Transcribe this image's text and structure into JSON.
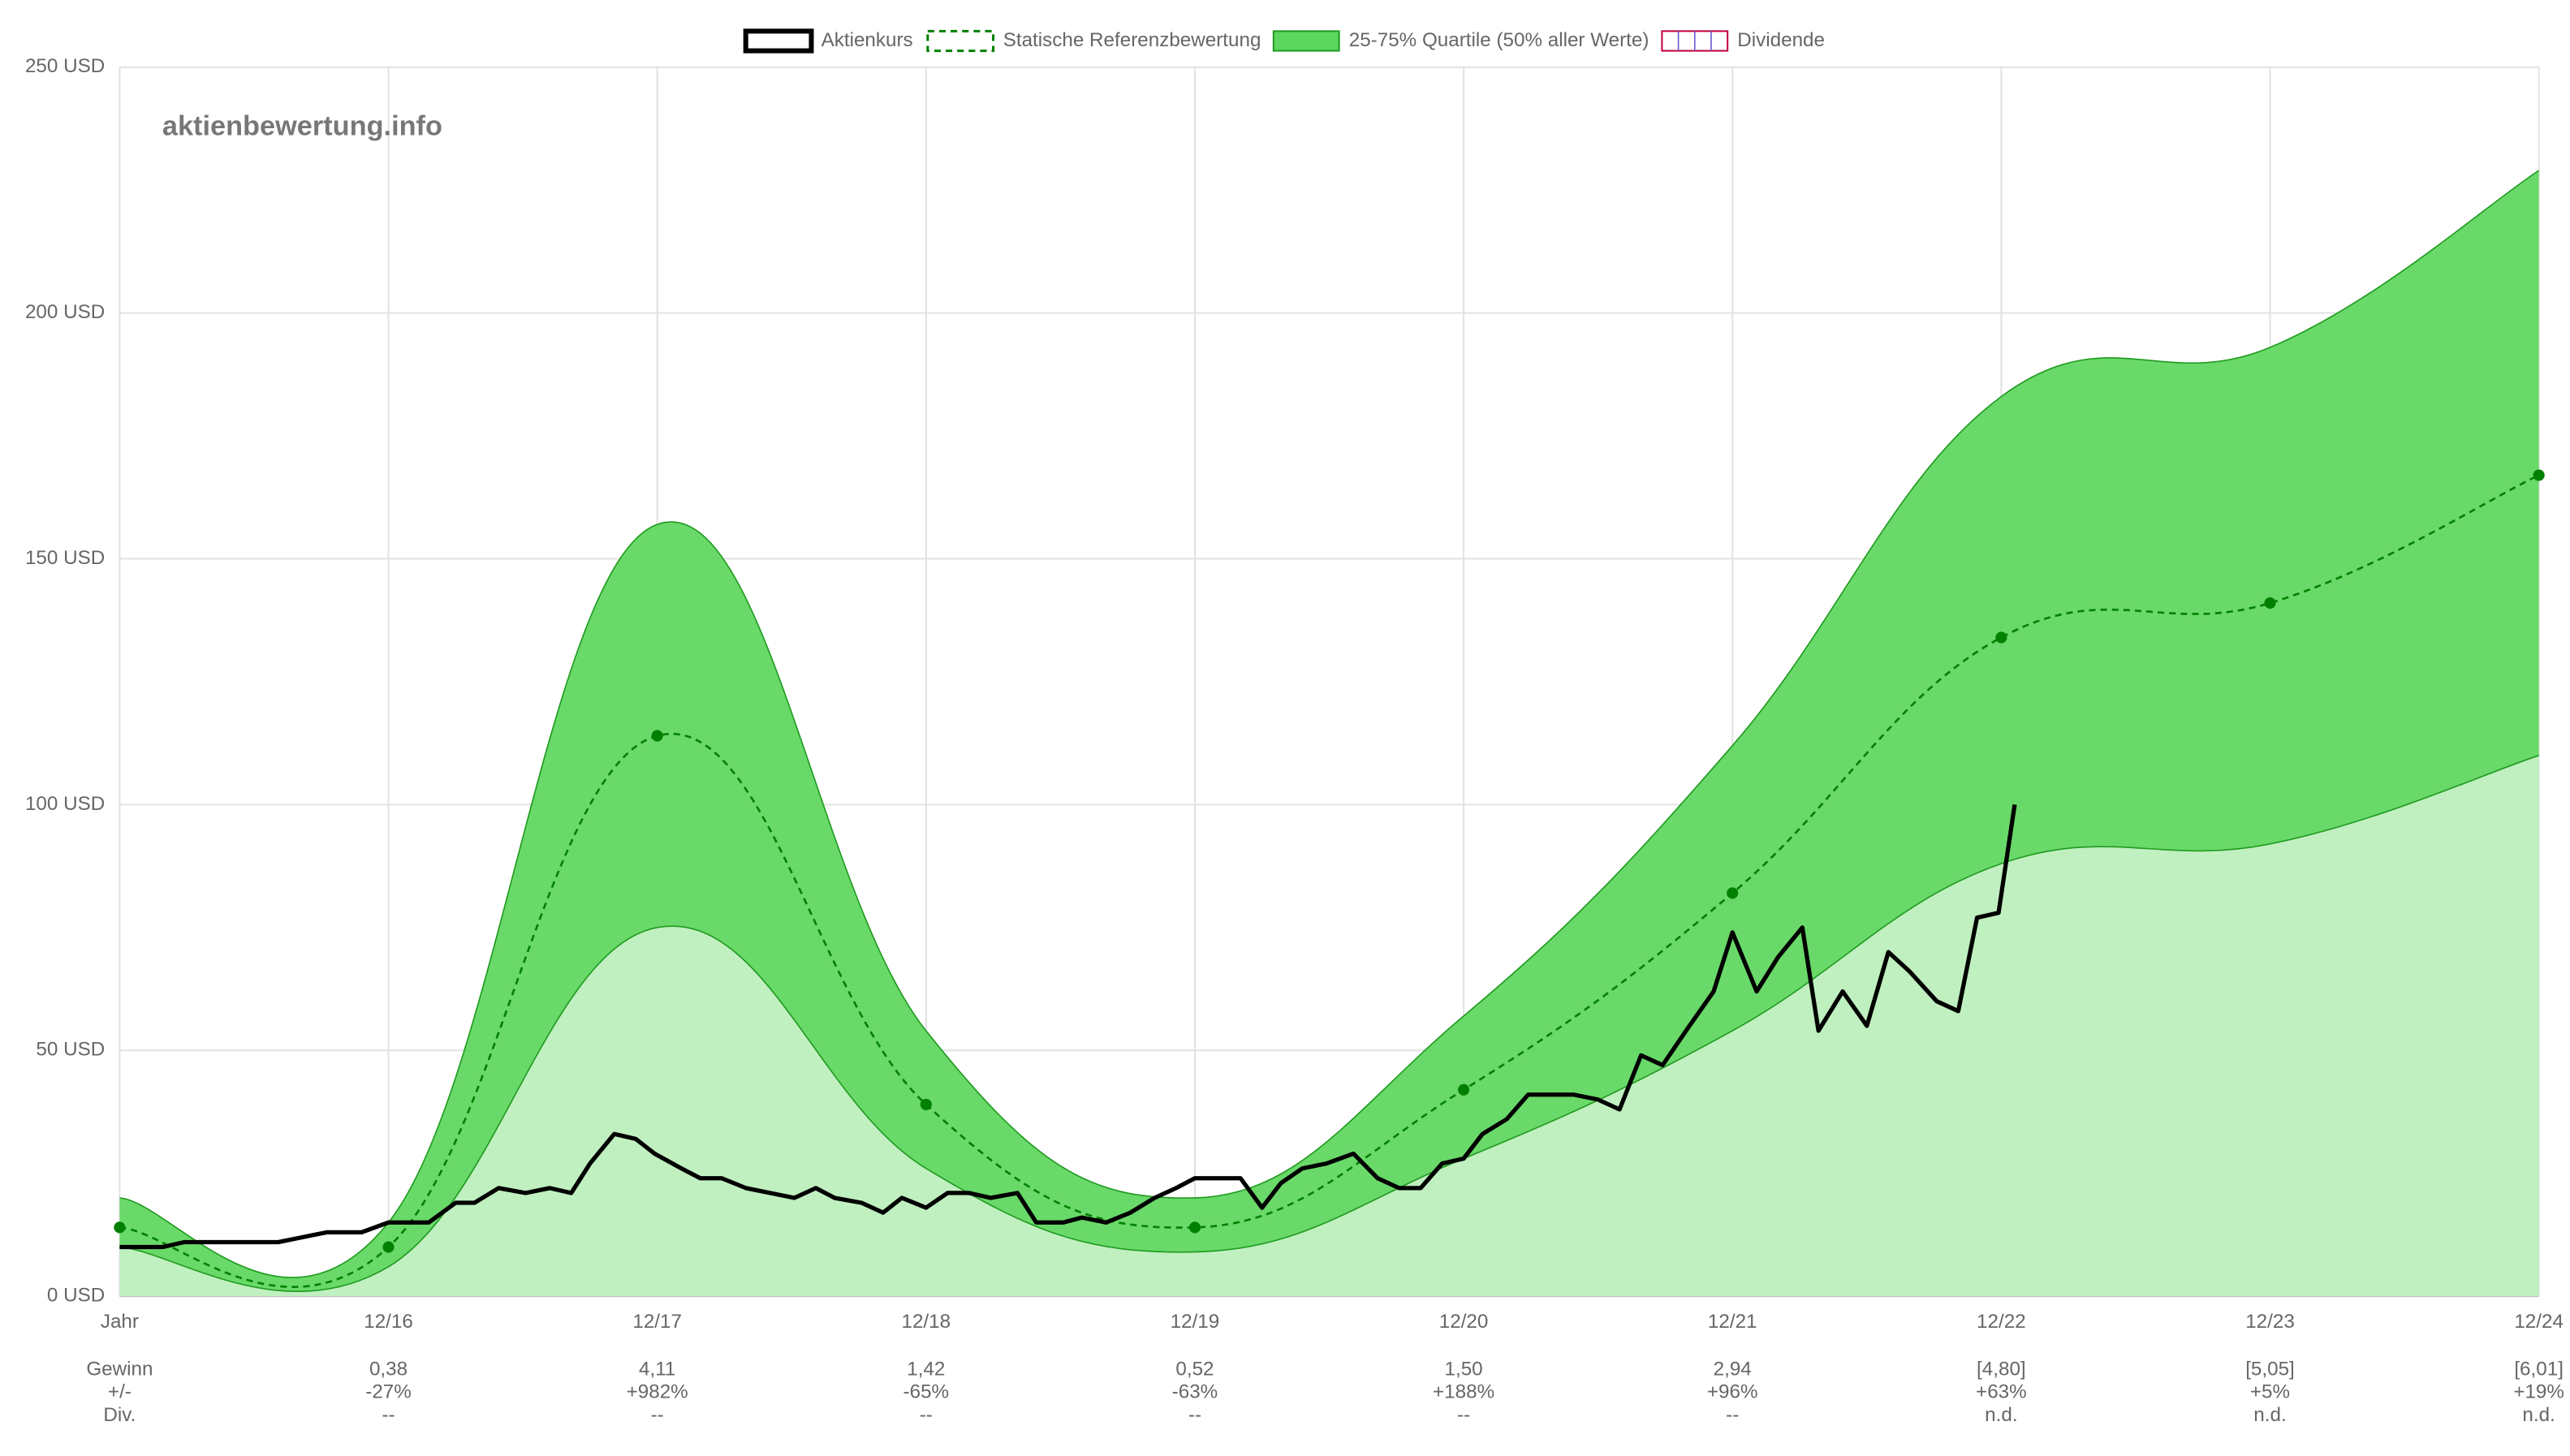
{
  "chart_data": {
    "type": "line",
    "watermark": "aktienbewertung.info",
    "categories": [
      "Jahr",
      "12/16",
      "12/17",
      "12/18",
      "12/19",
      "12/20",
      "12/21",
      "12/22",
      "12/23",
      "12/24"
    ],
    "ylim": [
      0,
      250
    ],
    "yticks": [
      {
        "value": 0,
        "label": "0 USD"
      },
      {
        "value": 50,
        "label": "50 USD"
      },
      {
        "value": 100,
        "label": "100 USD"
      },
      {
        "value": 150,
        "label": "150 USD"
      },
      {
        "value": 200,
        "label": "200 USD"
      },
      {
        "value": 250,
        "label": "250 USD"
      }
    ],
    "grid": true,
    "legend": "top",
    "series": [
      {
        "name": "Aktienkurs",
        "type": "line",
        "color": "#000000",
        "x": [
          0,
          0.1,
          0.16,
          0.24,
          0.32,
          0.41,
          0.5,
          0.59,
          0.68,
          0.77,
          0.9,
          1.0,
          1.08,
          1.15,
          1.25,
          1.32,
          1.41,
          1.51,
          1.6,
          1.68,
          1.75,
          1.84,
          1.92,
          1.99,
          2.09,
          2.16,
          2.24,
          2.33,
          2.42,
          2.51,
          2.59,
          2.66,
          2.76,
          2.84,
          2.91,
          3.0,
          3.08,
          3.16,
          3.24,
          3.34,
          3.41,
          3.51,
          3.58,
          3.67,
          3.76,
          3.85,
          3.93,
          4.0,
          4.1,
          4.17,
          4.25,
          4.32,
          4.4,
          4.49,
          4.59,
          4.68,
          4.76,
          4.84,
          4.92,
          5.0,
          5.07,
          5.16,
          5.24,
          5.32,
          5.41,
          5.5,
          5.58,
          5.66,
          5.74,
          5.84,
          5.93,
          6.0,
          6.09,
          6.17,
          6.26,
          6.32,
          6.41,
          6.5,
          6.58,
          6.66,
          6.76,
          6.84,
          6.91,
          6.99,
          7.05
        ],
        "values": [
          10,
          10,
          10,
          11,
          11,
          11,
          11,
          11,
          12,
          13,
          13,
          15,
          15,
          15,
          19,
          19,
          22,
          21,
          22,
          21,
          27,
          33,
          32,
          29,
          26,
          24,
          24,
          22,
          21,
          20,
          22,
          20,
          19,
          17,
          20,
          18,
          21,
          21,
          20,
          21,
          15,
          15,
          16,
          15,
          17,
          20,
          22,
          24,
          24,
          24,
          18,
          23,
          26,
          27,
          29,
          24,
          22,
          22,
          27,
          28,
          33,
          36,
          41,
          41,
          41,
          40,
          38,
          49,
          47,
          55,
          62,
          74,
          62,
          69,
          75,
          54,
          62,
          55,
          70,
          66,
          60,
          58,
          77,
          78,
          100
        ]
      },
      {
        "name": "Statische Referenzbewertung",
        "type": "dashed",
        "color": "#008000",
        "values": [
          14,
          10,
          114,
          39,
          14,
          42,
          82,
          134,
          141,
          167
        ]
      },
      {
        "name": "25-75% Quartile (50% aller Werte)",
        "type": "band",
        "color": "#5cd65c",
        "lower_color": "#c0f0c0",
        "upper": [
          20,
          15,
          157,
          54,
          20,
          57,
          112,
          183,
          193,
          229
        ],
        "lower": [
          10,
          6,
          75,
          26,
          9,
          28,
          54,
          88,
          92,
          110
        ]
      },
      {
        "name": "Dividende",
        "type": "bar",
        "color": "#c0003c"
      }
    ],
    "table": {
      "row_labels": [
        "Gewinn",
        "+/-",
        "Div."
      ],
      "rows": [
        [
          "0,38",
          "4,11",
          "1,42",
          "0,52",
          "1,50",
          "2,94",
          "[4,80]",
          "[5,05]",
          "[6,01]"
        ],
        [
          "-27%",
          "+982%",
          "-65%",
          "-63%",
          "+188%",
          "+96%",
          "+63%",
          "+5%",
          "+19%"
        ],
        [
          "--",
          "--",
          "--",
          "--",
          "--",
          "--",
          "n.d.",
          "n.d.",
          "n.d."
        ]
      ]
    }
  }
}
